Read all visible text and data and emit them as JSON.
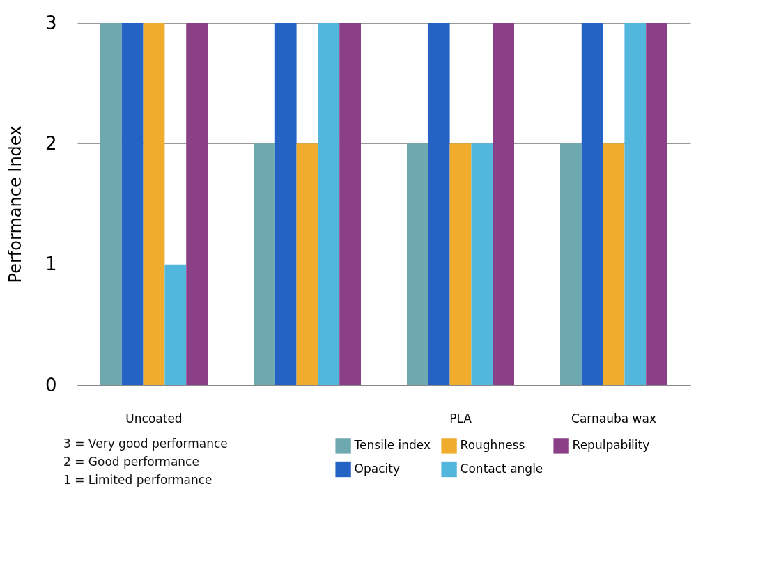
{
  "chart_data": {
    "type": "bar",
    "ylabel": "Performance Index",
    "categories": [
      "Uncoated",
      null,
      "PLA",
      "Carnauba wax"
    ],
    "series": [
      {
        "name": "Tensile index",
        "color": "#6fa9b0",
        "values": [
          3,
          2,
          2,
          2
        ]
      },
      {
        "name": "Opacity",
        "color": "#2462c4",
        "values": [
          3,
          3,
          3,
          3
        ]
      },
      {
        "name": "Roughness",
        "color": "#f0ac2c",
        "values": [
          3,
          2,
          2,
          2
        ]
      },
      {
        "name": "Contact angle",
        "color": "#52b6dd",
        "values": [
          1,
          3,
          2,
          3
        ]
      },
      {
        "name": "Repulpability",
        "color": "#8b3f87",
        "values": [
          3,
          3,
          3,
          3
        ]
      }
    ],
    "ylim": [
      0,
      3
    ],
    "yticks": [
      0,
      1,
      2,
      3
    ],
    "grid": "y",
    "legend": "bottom",
    "annotations": [
      "3 = Very good performance",
      "2 = Good performance",
      "1 = Limited performance"
    ]
  }
}
